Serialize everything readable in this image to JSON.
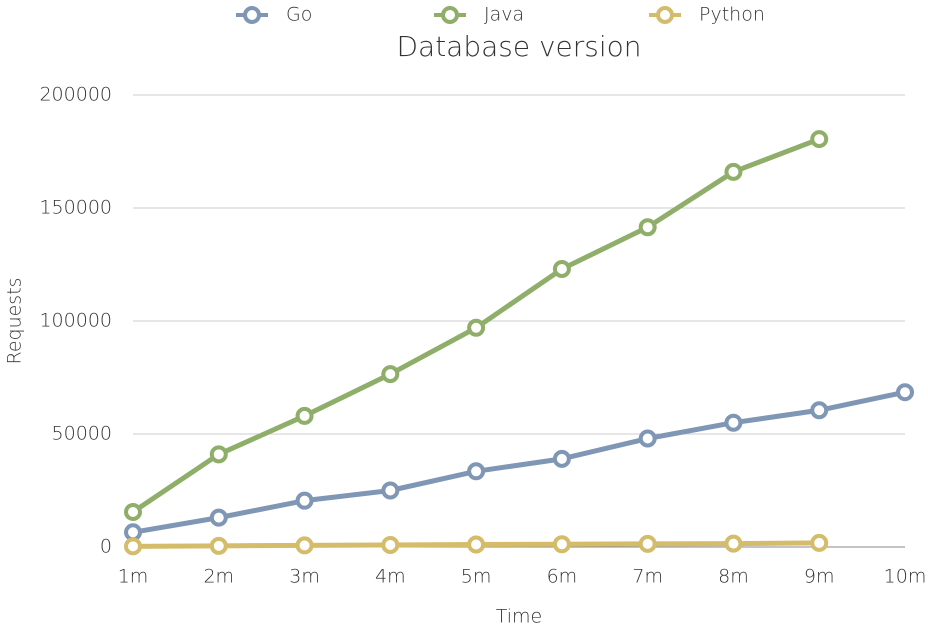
{
  "chart_data": {
    "type": "line",
    "title": "Database version",
    "xlabel": "Time",
    "ylabel": "Requests",
    "categories": [
      "1m",
      "2m",
      "3m",
      "4m",
      "5m",
      "6m",
      "7m",
      "8m",
      "9m",
      "10m"
    ],
    "series": [
      {
        "name": "Go",
        "color": "#7f96b5",
        "values": [
          6500,
          13000,
          20500,
          25000,
          33500,
          39000,
          48000,
          55000,
          60500,
          68500
        ]
      },
      {
        "name": "Java",
        "color": "#8fae6a",
        "values": [
          15500,
          41000,
          58000,
          76500,
          97000,
          123000,
          141500,
          166000,
          180500,
          null
        ]
      },
      {
        "name": "Python",
        "color": "#d4bc6b",
        "values": [
          300,
          500,
          700,
          900,
          1100,
          1200,
          1400,
          1500,
          1800,
          null
        ]
      }
    ],
    "ylim": [
      0,
      200000
    ],
    "yticks": [
      0,
      50000,
      100000,
      150000,
      200000
    ],
    "grid": true,
    "legend": "top"
  }
}
